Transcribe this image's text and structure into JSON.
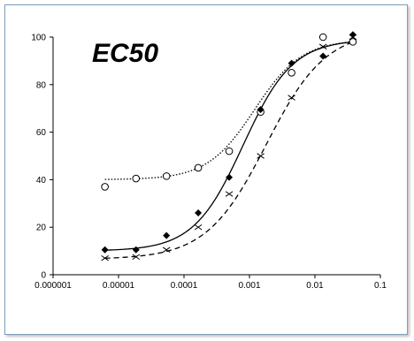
{
  "chart_data": {
    "type": "scatter",
    "title": "EC50",
    "xlabel": "",
    "ylabel": "",
    "x_scale": "log",
    "xlim": [
      1e-06,
      0.1
    ],
    "ylim": [
      0,
      100
    ],
    "x_ticks": [
      1e-06,
      1e-05,
      0.0001,
      0.001,
      0.01,
      0.1
    ],
    "x_tick_labels": [
      "0.000001",
      "0.00001",
      "0.0001",
      "0.001",
      "0.01",
      "0.1"
    ],
    "y_ticks": [
      0,
      20,
      40,
      60,
      80,
      100
    ],
    "y_tick_labels": [
      "0",
      "20",
      "40",
      "60",
      "80",
      "100"
    ],
    "grid": false,
    "legend": false,
    "series": [
      {
        "marker": "circle-open",
        "line_style": "dotted",
        "x": [
          6.2e-06,
          1.85e-05,
          5.4e-05,
          0.000165,
          0.00049,
          0.00148,
          0.0044,
          0.0133,
          0.038
        ],
        "y": [
          37,
          40.5,
          41.5,
          45,
          52,
          68.5,
          85,
          100,
          98
        ],
        "fit": {
          "bottom": 40,
          "top": 99,
          "ec50": 0.0012,
          "hill": 1.2
        }
      },
      {
        "marker": "diamond-filled",
        "line_style": "solid",
        "x": [
          6.2e-06,
          1.85e-05,
          5.4e-05,
          0.000165,
          0.00049,
          0.00148,
          0.0044,
          0.0133,
          0.038
        ],
        "y": [
          10.5,
          10.5,
          16.5,
          26,
          41,
          69.5,
          89,
          92,
          101
        ],
        "fit": {
          "bottom": 10,
          "top": 99,
          "ec50": 0.0008,
          "hill": 1.15
        }
      },
      {
        "marker": "x",
        "line_style": "dashed",
        "x": [
          6.2e-06,
          1.85e-05,
          5.4e-05,
          0.000165,
          0.00049,
          0.00148,
          0.0044,
          0.0133,
          0.038
        ],
        "y": [
          7,
          7.5,
          10.5,
          20,
          34,
          50,
          74.5,
          96,
          100
        ],
        "fit": {
          "bottom": 6.5,
          "top": 103,
          "ec50": 0.0018,
          "hill": 0.95
        }
      }
    ]
  }
}
